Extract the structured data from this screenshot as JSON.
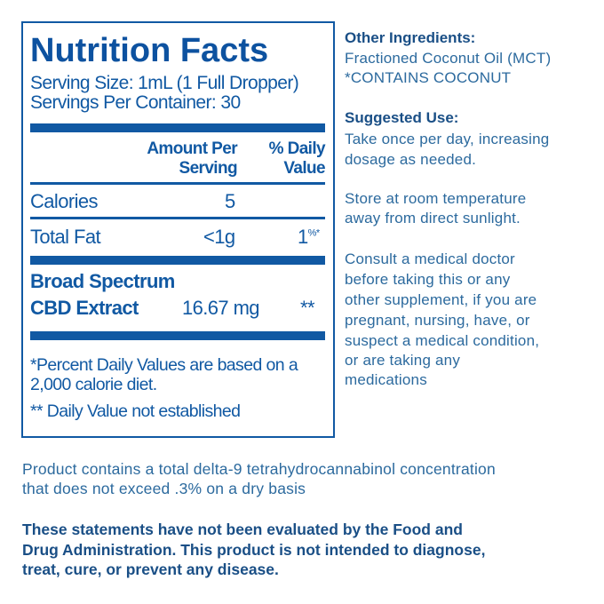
{
  "label": {
    "title": "Nutrition Facts",
    "serving_size": "Serving Size: 1mL (1 Full Dropper)",
    "servings_per_container": "Servings Per Container: 30",
    "header_amount_1": "Amount Per",
    "header_amount_2": "Serving",
    "header_dv_1": "% Daily",
    "header_dv_2": "Value",
    "rows": [
      {
        "name": "Calories",
        "amount": "5",
        "dv": ""
      },
      {
        "name": "Total Fat",
        "amount": "<1g",
        "dv": "1",
        "dv_mark": "%*"
      }
    ],
    "cbd": {
      "name_1": "Broad Spectrum",
      "name_2": "CBD Extract",
      "amount": "16.67 mg",
      "dv": "**"
    },
    "footnote_1": "*Percent Daily Values are based on a",
    "footnote_2": "2,000 calorie diet.",
    "footnote_3": "** Daily Value not established"
  },
  "side": {
    "ingredients_heading": "Other Ingredients:",
    "ingredients": [
      "Fractioned Coconut Oil (MCT)",
      "*CONTAINS COCONUT"
    ],
    "use_heading": "Suggested Use:",
    "use": [
      "Take once per day, increasing",
      "dosage as needed."
    ],
    "storage": [
      "Store at room temperature",
      "away from direct sunlight."
    ],
    "consult": [
      "Consult a medical doctor",
      "before taking this or any",
      "other supplement, if you are",
      "pregnant, nursing, have, or",
      "suspect a medical condition,",
      "or are taking any",
      "medications"
    ]
  },
  "bottom": {
    "thc": [
      "Product contains a total delta-9 tetrahydrocannabinol concentration",
      "that does not exceed .3% on a dry basis"
    ],
    "disclaimer": [
      "These statements have not been evaluated by the Food and",
      "Drug Administration. This product is not intended to diagnose,",
      "treat, cure, or prevent any disease."
    ]
  },
  "colors": {
    "label_blue": "#1159a3",
    "heading_blue": "#1a4f86",
    "body_blue": "#2c6a9e"
  }
}
